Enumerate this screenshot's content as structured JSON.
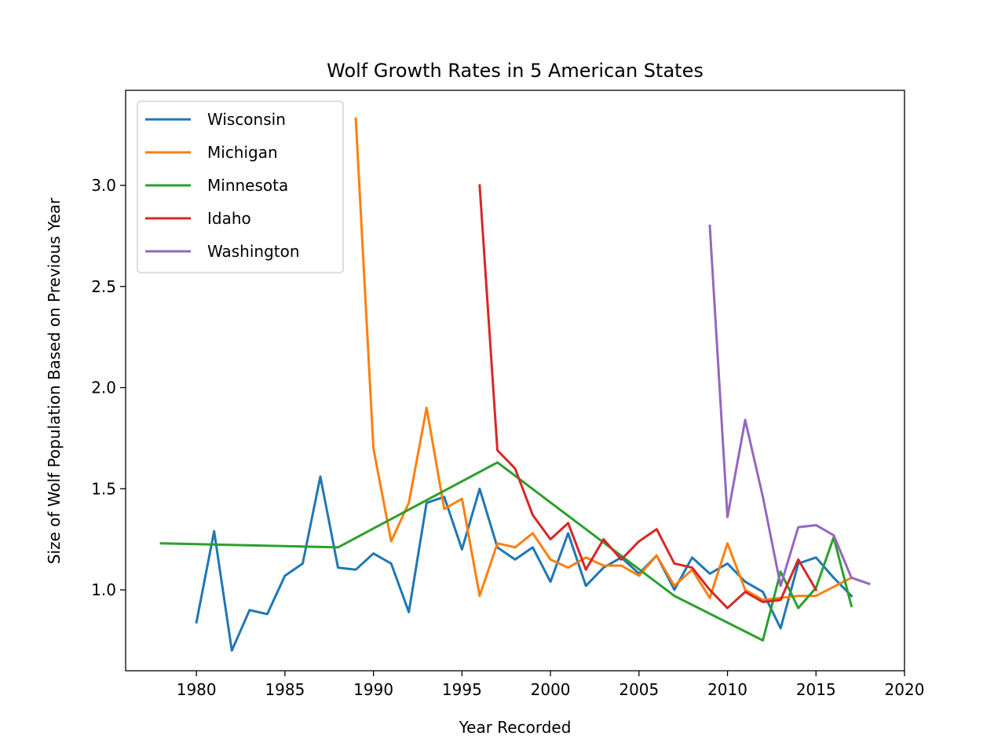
{
  "chart_data": {
    "type": "line",
    "title": "Wolf Growth Rates in 5 American States",
    "xlabel": "Year Recorded",
    "ylabel": "Size of Wolf Population Based on Previous Year",
    "xlim": [
      1976,
      2020
    ],
    "ylim": [
      0.6,
      3.47
    ],
    "xticks": [
      1980,
      1985,
      1990,
      1995,
      2000,
      2005,
      2010,
      2015,
      2020
    ],
    "xtick_labels": [
      "1980",
      "1985",
      "1990",
      "1995",
      "2000",
      "2005",
      "2010",
      "2015",
      "2020"
    ],
    "yticks": [
      1.0,
      1.5,
      2.0,
      2.5,
      3.0
    ],
    "ytick_labels": [
      "1.0",
      "1.5",
      "2.0",
      "2.5",
      "3.0"
    ],
    "grid": false,
    "legend_position": "top-left",
    "series": [
      {
        "name": "Wisconsin",
        "color": "#1f77b4",
        "x": [
          1980,
          1981,
          1982,
          1983,
          1984,
          1985,
          1986,
          1987,
          1988,
          1989,
          1990,
          1991,
          1992,
          1993,
          1994,
          1995,
          1996,
          1997,
          1998,
          1999,
          2000,
          2001,
          2002,
          2003,
          2004,
          2005,
          2006,
          2007,
          2008,
          2009,
          2010,
          2011,
          2012,
          2013,
          2014,
          2015,
          2016,
          2017
        ],
        "y": [
          0.84,
          1.29,
          0.7,
          0.9,
          0.88,
          1.07,
          1.13,
          1.56,
          1.11,
          1.1,
          1.18,
          1.13,
          0.89,
          1.43,
          1.46,
          1.2,
          1.5,
          1.21,
          1.15,
          1.21,
          1.04,
          1.28,
          1.02,
          1.11,
          1.16,
          1.08,
          1.17,
          1.0,
          1.16,
          1.08,
          1.13,
          1.04,
          0.99,
          0.81,
          1.13,
          1.16,
          1.06,
          0.97
        ]
      },
      {
        "name": "Michigan",
        "color": "#ff7f0e",
        "x": [
          1989,
          1990,
          1991,
          1992,
          1993,
          1994,
          1995,
          1996,
          1997,
          1998,
          1999,
          2000,
          2001,
          2002,
          2003,
          2004,
          2005,
          2006,
          2007,
          2008,
          2009,
          2010,
          2011,
          2012,
          2013,
          2014,
          2015,
          2017
        ],
        "y": [
          3.33,
          1.7,
          1.24,
          1.43,
          1.9,
          1.4,
          1.45,
          0.97,
          1.23,
          1.21,
          1.28,
          1.15,
          1.11,
          1.16,
          1.12,
          1.12,
          1.07,
          1.17,
          1.02,
          1.1,
          0.96,
          1.23,
          1.0,
          0.95,
          0.96,
          0.97,
          0.97,
          1.06
        ]
      },
      {
        "name": "Minnesota",
        "color": "#2ca02c",
        "x": [
          1978,
          1988,
          1997,
          2007,
          2012,
          2013,
          2014,
          2015,
          2016,
          2017
        ],
        "y": [
          1.23,
          1.21,
          1.63,
          0.97,
          0.75,
          1.09,
          0.91,
          1.01,
          1.26,
          0.92
        ]
      },
      {
        "name": "Idaho",
        "color": "#d62728",
        "x": [
          1996,
          1997,
          1998,
          1999,
          2000,
          2001,
          2002,
          2003,
          2004,
          2005,
          2006,
          2007,
          2008,
          2009,
          2010,
          2011,
          2012,
          2013,
          2014,
          2015
        ],
        "y": [
          3.0,
          1.69,
          1.6,
          1.37,
          1.25,
          1.33,
          1.1,
          1.25,
          1.15,
          1.24,
          1.3,
          1.13,
          1.11,
          1.0,
          0.91,
          0.99,
          0.94,
          0.95,
          1.15,
          1.0
        ]
      },
      {
        "name": "Washington",
        "color": "#9467bd",
        "x": [
          2009,
          2010,
          2011,
          2012,
          2013,
          2014,
          2015,
          2016,
          2017,
          2018
        ],
        "y": [
          2.8,
          1.36,
          1.84,
          1.46,
          1.02,
          1.31,
          1.32,
          1.27,
          1.06,
          1.03
        ]
      }
    ]
  }
}
